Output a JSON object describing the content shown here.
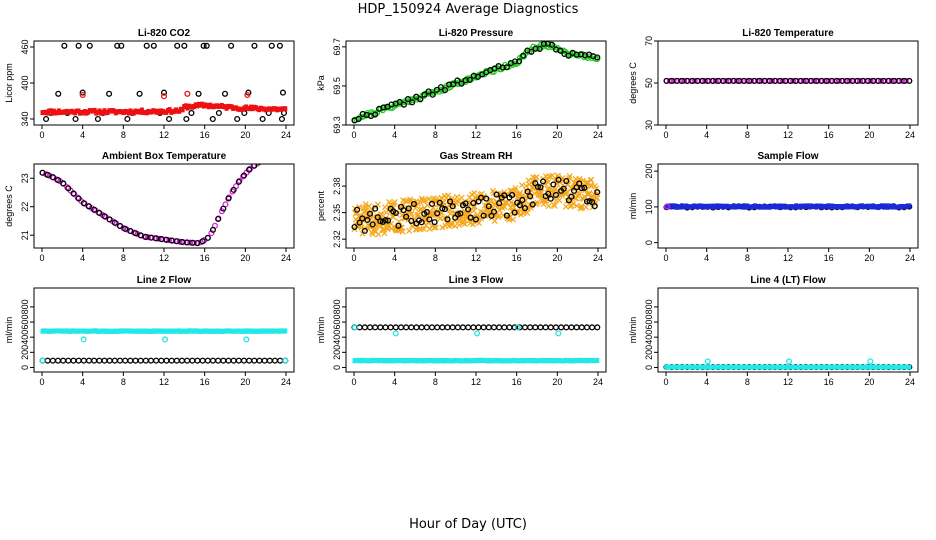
{
  "title": "HDP_150924  Average Diagnostics",
  "xlabel": "Hour of Day (UTC)",
  "chart_data": [
    {
      "type": "scatter",
      "title": "Li-820 CO2",
      "ylabel": "Licor ppm",
      "xlim": [
        0,
        24
      ],
      "xticks": [
        0,
        4,
        8,
        12,
        16,
        20,
        24
      ],
      "ylim": [
        330,
        470
      ],
      "yticks": [
        340,
        400,
        460
      ],
      "series": [
        {
          "color": "#000000",
          "style": "circle",
          "kind": "pairs",
          "points": [
            [
              0.4,
              340
            ],
            [
              0.9,
              350
            ],
            [
              1.6,
              382
            ],
            [
              2.2,
              462
            ],
            [
              2.5,
              350
            ],
            [
              3.3,
              340
            ],
            [
              3.6,
              462
            ],
            [
              4.0,
              384
            ],
            [
              4.7,
              462
            ],
            [
              5.5,
              340
            ],
            [
              6.0,
              350
            ],
            [
              6.6,
              382
            ],
            [
              7.4,
              462
            ],
            [
              7.8,
              462
            ],
            [
              8.4,
              340
            ],
            [
              8.9,
              350
            ],
            [
              9.6,
              382
            ],
            [
              10.3,
              462
            ],
            [
              11.0,
              462
            ],
            [
              11.6,
              350
            ],
            [
              12.0,
              384
            ],
            [
              12.5,
              340
            ],
            [
              13.3,
              462
            ],
            [
              14.0,
              462
            ],
            [
              14.2,
              340
            ],
            [
              14.7,
              350
            ],
            [
              15.4,
              382
            ],
            [
              15.9,
              462
            ],
            [
              16.2,
              462
            ],
            [
              16.8,
              340
            ],
            [
              17.4,
              350
            ],
            [
              18.0,
              382
            ],
            [
              18.6,
              462
            ],
            [
              19.2,
              340
            ],
            [
              19.9,
              350
            ],
            [
              20.3,
              384
            ],
            [
              20.9,
              462
            ],
            [
              21.7,
              340
            ],
            [
              22.3,
              350
            ],
            [
              22.6,
              462
            ],
            [
              23.4,
              462
            ],
            [
              23.6,
              340
            ],
            [
              23.7,
              384
            ],
            [
              23.8,
              350
            ]
          ]
        },
        {
          "color": "#ee1111",
          "style": "line",
          "kind": "breaks",
          "breaks": [
            [
              0,
              352
            ],
            [
              4,
              352
            ],
            [
              8,
              352
            ],
            [
              12,
              353
            ],
            [
              13.8,
              354
            ],
            [
              14,
              360
            ],
            [
              16,
              363
            ],
            [
              18,
              360
            ],
            [
              20,
              358
            ],
            [
              24,
              356
            ]
          ],
          "noise": 2.5,
          "count": 150,
          "seed": 11
        },
        {
          "color": "#ee1111",
          "style": "circle",
          "kind": "pairs",
          "points": [
            [
              4.0,
              380
            ],
            [
              12.0,
              378
            ],
            [
              14.3,
              382
            ],
            [
              20.2,
              380
            ]
          ]
        }
      ]
    },
    {
      "type": "scatter",
      "title": "Li-820 Pressure",
      "ylabel": "kPa",
      "xlim": [
        0,
        24
      ],
      "xticks": [
        0,
        4,
        8,
        12,
        16,
        20,
        24
      ],
      "ylim": [
        69.3,
        69.73
      ],
      "yticks": [
        69.3,
        69.5,
        69.7
      ],
      "series": [
        {
          "color": "#22cc22",
          "style": "circle",
          "kind": "breaks",
          "breaks": [
            [
              0,
              69.33
            ],
            [
              4,
              69.4
            ],
            [
              8,
              69.47
            ],
            [
              12,
              69.55
            ],
            [
              16,
              69.62
            ],
            [
              17.5,
              69.69
            ],
            [
              19,
              69.71
            ],
            [
              21,
              69.67
            ],
            [
              24,
              69.64
            ]
          ],
          "noise": 0.01,
          "count": 130,
          "seed": 21
        },
        {
          "color": "#000000",
          "style": "circle",
          "kind": "breaks",
          "breaks": [
            [
              0,
              69.33
            ],
            [
              4,
              69.4
            ],
            [
              8,
              69.47
            ],
            [
              12,
              69.55
            ],
            [
              16,
              69.62
            ],
            [
              17.5,
              69.69
            ],
            [
              19,
              69.71
            ],
            [
              21,
              69.67
            ],
            [
              24,
              69.64
            ]
          ],
          "noise": 0.015,
          "count": 60,
          "seed": 22
        }
      ]
    },
    {
      "type": "scatter",
      "title": "Li-820 Temperature",
      "ylabel": "degrees C",
      "xlim": [
        0,
        24
      ],
      "xticks": [
        0,
        4,
        8,
        12,
        16,
        20,
        24
      ],
      "ylim": [
        30,
        70
      ],
      "yticks": [
        30,
        50,
        70
      ],
      "series": [
        {
          "color": "#dd22dd",
          "style": "circle",
          "kind": "breaks",
          "breaks": [
            [
              0,
              51
            ],
            [
              24,
              51
            ]
          ],
          "noise": 0,
          "count": 70,
          "seed": 31
        },
        {
          "color": "#000000",
          "style": "circle",
          "kind": "breaks",
          "breaks": [
            [
              0,
              51
            ],
            [
              24,
              51
            ]
          ],
          "noise": 0,
          "count": 48,
          "seed": 32
        }
      ]
    },
    {
      "type": "scatter",
      "title": "Ambient Box Temperature",
      "ylabel": "degrees C",
      "xlim": [
        0,
        24
      ],
      "xticks": [
        0,
        4,
        8,
        12,
        16,
        20,
        24
      ],
      "ylim": [
        20.55,
        23.5
      ],
      "yticks": [
        21,
        22,
        23
      ],
      "series": [
        {
          "color": "#dd22dd",
          "style": "circle",
          "kind": "breaks",
          "breaks": [
            [
              0,
              23.2
            ],
            [
              1,
              23.05
            ],
            [
              2,
              22.85
            ],
            [
              3,
              22.5
            ],
            [
              4,
              22.15
            ],
            [
              6,
              21.7
            ],
            [
              8,
              21.25
            ],
            [
              10,
              20.95
            ],
            [
              12,
              20.85
            ],
            [
              14,
              20.75
            ],
            [
              15.5,
              20.72
            ],
            [
              16.5,
              20.95
            ],
            [
              17.5,
              21.7
            ],
            [
              18.5,
              22.4
            ],
            [
              19.5,
              22.95
            ],
            [
              20.5,
              23.35
            ],
            [
              22,
              23.72
            ],
            [
              23,
              23.8
            ],
            [
              24,
              23.78
            ]
          ],
          "noise": 0,
          "count": 70,
          "seed": 41
        },
        {
          "color": "#000000",
          "style": "circle",
          "kind": "breaks",
          "breaks": [
            [
              0,
              23.2
            ],
            [
              1,
              23.05
            ],
            [
              2,
              22.85
            ],
            [
              3,
              22.5
            ],
            [
              4,
              22.15
            ],
            [
              6,
              21.7
            ],
            [
              8,
              21.25
            ],
            [
              10,
              20.95
            ],
            [
              12,
              20.85
            ],
            [
              14,
              20.75
            ],
            [
              15.5,
              20.72
            ],
            [
              16.5,
              20.95
            ],
            [
              17.5,
              21.7
            ],
            [
              18.5,
              22.4
            ],
            [
              19.5,
              22.95
            ],
            [
              20.5,
              23.35
            ],
            [
              22,
              23.72
            ],
            [
              23,
              23.8
            ],
            [
              24,
              23.78
            ]
          ],
          "noise": 0,
          "count": 48,
          "seed": 42
        }
      ]
    },
    {
      "type": "scatter",
      "title": "Gas Stream RH",
      "ylabel": "percent",
      "xlim": [
        0,
        24
      ],
      "xticks": [
        0,
        4,
        8,
        12,
        16,
        20,
        24
      ],
      "ylim": [
        2.31,
        2.405
      ],
      "yticks": [
        2.32,
        2.35,
        2.38
      ],
      "series": [
        {
          "color": "#f5a81c",
          "style": "cross",
          "kind": "breaks",
          "breaks": [
            [
              0,
              2.34
            ],
            [
              4,
              2.345
            ],
            [
              8,
              2.35
            ],
            [
              12,
              2.355
            ],
            [
              16,
              2.36
            ],
            [
              18,
              2.375
            ],
            [
              20,
              2.375
            ],
            [
              24,
              2.37
            ]
          ],
          "noise": 0.018,
          "count": 520,
          "seed": 51
        },
        {
          "color": "#000000",
          "style": "circle",
          "kind": "breaks",
          "breaks": [
            [
              0,
              2.34
            ],
            [
              4,
              2.345
            ],
            [
              8,
              2.35
            ],
            [
              12,
              2.355
            ],
            [
              16,
              2.36
            ],
            [
              18,
              2.375
            ],
            [
              20,
              2.375
            ],
            [
              24,
              2.37
            ]
          ],
          "noise": 0.013,
          "count": 95,
          "seed": 52
        }
      ]
    },
    {
      "type": "scatter",
      "title": "Sample Flow",
      "ylabel": "ml/min",
      "xlim": [
        0,
        24
      ],
      "xticks": [
        0,
        4,
        8,
        12,
        16,
        20,
        24
      ],
      "ylim": [
        -15,
        220
      ],
      "yticks": [
        0,
        100,
        200
      ],
      "series": [
        {
          "color": "#000000",
          "style": "circle",
          "kind": "breaks",
          "breaks": [
            [
              0,
              100
            ],
            [
              24,
              100
            ]
          ],
          "noise": 2,
          "count": 48,
          "seed": 61
        },
        {
          "color": "#1a2bd6",
          "style": "line",
          "kind": "breaks",
          "breaks": [
            [
              0,
              101
            ],
            [
              24,
              101
            ]
          ],
          "noise": 2,
          "count": 160,
          "seed": 62
        },
        {
          "color": "#dd22dd",
          "style": "circle",
          "kind": "pairs",
          "points": [
            [
              0.1,
              101
            ]
          ]
        }
      ]
    },
    {
      "type": "scatter",
      "title": "Line 2 Flow",
      "ylabel": "ml/min",
      "xlim": [
        0,
        24
      ],
      "xticks": [
        0,
        4,
        8,
        12,
        16,
        20,
        24
      ],
      "ylim": [
        -60,
        1050
      ],
      "yticks": [
        0,
        200,
        400,
        600,
        800
      ],
      "series": [
        {
          "color": "#000000",
          "style": "circle",
          "kind": "breaks",
          "breaks": [
            [
              0,
              90
            ],
            [
              24,
              90
            ]
          ],
          "noise": 0,
          "count": 48,
          "seed": 71
        },
        {
          "color": "#22e8e8",
          "style": "circle",
          "kind": "breaks",
          "breaks": [
            [
              0,
              90
            ],
            [
              24,
              90
            ]
          ],
          "noise": 0,
          "count": 2,
          "seed": 72
        },
        {
          "color": "#22e8e8",
          "style": "line",
          "kind": "breaks",
          "breaks": [
            [
              0,
              480
            ],
            [
              24,
              480
            ]
          ],
          "noise": 4,
          "count": 160,
          "seed": 73
        },
        {
          "color": "#22e8e8",
          "style": "circle",
          "kind": "pairs",
          "points": [
            [
              4.1,
              370
            ],
            [
              12.1,
              370
            ],
            [
              20.1,
              370
            ]
          ]
        }
      ]
    },
    {
      "type": "scatter",
      "title": "Line 3 Flow",
      "ylabel": "ml/min",
      "xlim": [
        0,
        24
      ],
      "xticks": [
        0,
        4,
        8,
        12,
        16,
        20,
        24
      ],
      "ylim": [
        -60,
        1050
      ],
      "yticks": [
        0,
        200,
        400,
        600,
        800
      ],
      "series": [
        {
          "color": "#000000",
          "style": "circle",
          "kind": "breaks",
          "breaks": [
            [
              0,
              530
            ],
            [
              24,
              530
            ]
          ],
          "noise": 0,
          "count": 48,
          "seed": 81
        },
        {
          "color": "#22e8e8",
          "style": "line",
          "kind": "breaks",
          "breaks": [
            [
              0,
              90
            ],
            [
              24,
              90
            ]
          ],
          "noise": 4,
          "count": 160,
          "seed": 82
        },
        {
          "color": "#22e8e8",
          "style": "circle",
          "kind": "pairs",
          "points": [
            [
              0.1,
              530
            ],
            [
              4.1,
              450
            ],
            [
              12.1,
              450
            ],
            [
              16.1,
              530
            ],
            [
              20.1,
              450
            ]
          ]
        }
      ]
    },
    {
      "type": "scatter",
      "title": "Line 4 (LT) Flow",
      "ylabel": "ml/min",
      "xlim": [
        0,
        24
      ],
      "xticks": [
        0,
        4,
        8,
        12,
        16,
        20,
        24
      ],
      "ylim": [
        -60,
        1050
      ],
      "yticks": [
        0,
        200,
        400,
        600,
        800
      ],
      "series": [
        {
          "color": "#000000",
          "style": "circle",
          "kind": "breaks",
          "breaks": [
            [
              0,
              5
            ],
            [
              24,
              5
            ]
          ],
          "noise": 0,
          "count": 48,
          "seed": 91
        },
        {
          "color": "#22e8e8",
          "style": "line",
          "kind": "breaks",
          "breaks": [
            [
              0,
              5
            ],
            [
              24,
              5
            ]
          ],
          "noise": 1,
          "count": 80,
          "seed": 92
        },
        {
          "color": "#22e8e8",
          "style": "circle",
          "kind": "pairs",
          "points": [
            [
              0.1,
              5
            ],
            [
              4.1,
              80
            ],
            [
              12.1,
              80
            ],
            [
              20.1,
              80
            ]
          ]
        }
      ]
    }
  ]
}
